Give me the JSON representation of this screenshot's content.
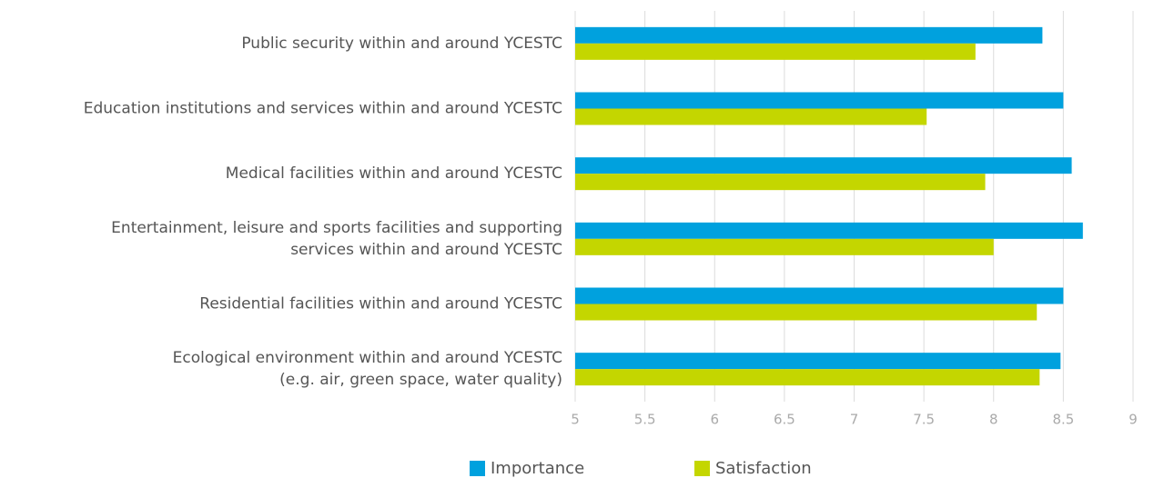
{
  "chart_data": {
    "type": "bar",
    "orientation": "horizontal",
    "categories": [
      "Public security within and around YCESTC",
      "Education institutions and services within and around YCESTC",
      "Medical facilities within and around YCESTC",
      "Entertainment, leisure and sports facilities and supporting\nservices within and around YCESTC",
      "Residential facilities within and around YCESTC",
      "Ecological environment within and around YCESTC\n(e.g. air, green space, water quality)"
    ],
    "series": [
      {
        "name": "Importance",
        "color": "#00a1de",
        "values": [
          8.35,
          8.5,
          8.56,
          8.64,
          8.5,
          8.48
        ]
      },
      {
        "name": "Satisfaction",
        "color": "#c4d600",
        "values": [
          7.87,
          7.52,
          7.94,
          8.0,
          8.31,
          8.33
        ]
      }
    ],
    "xlim": [
      5,
      9
    ],
    "xticks": [
      5,
      5.5,
      6,
      6.5,
      7,
      7.5,
      8,
      8.5,
      9
    ],
    "grid": true,
    "legend": "bottom"
  }
}
